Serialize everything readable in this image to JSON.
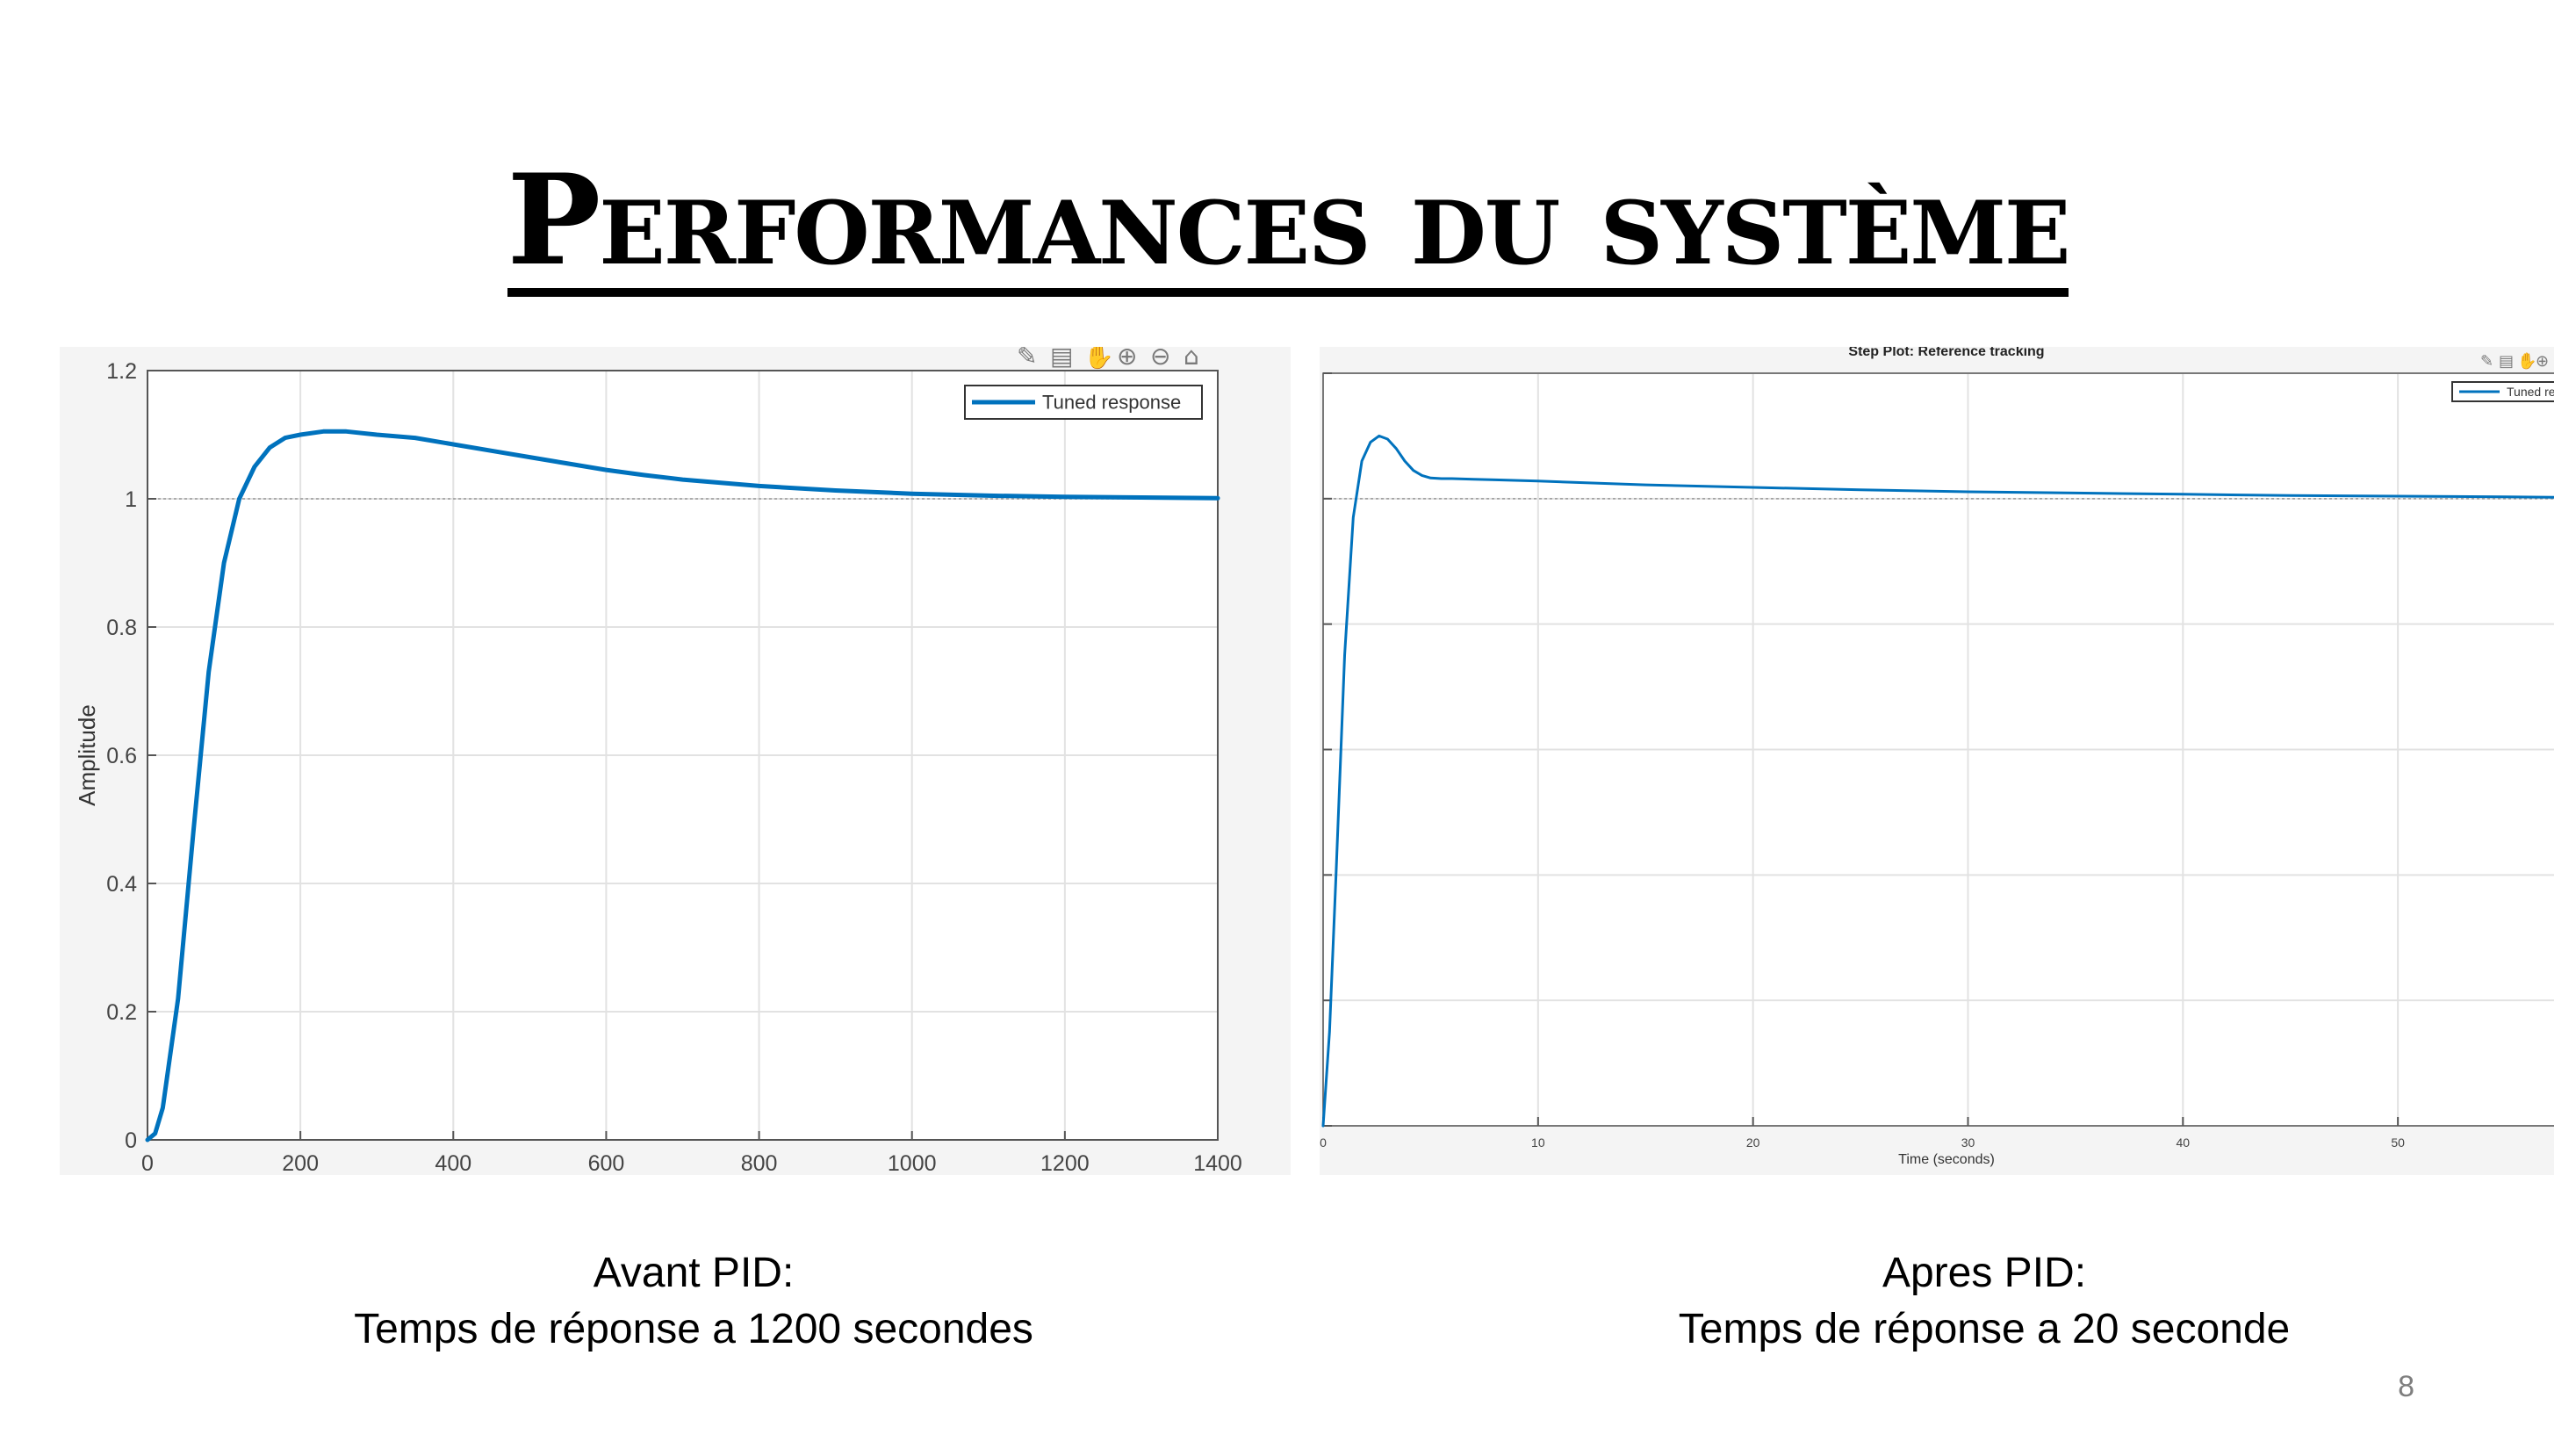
{
  "slide": {
    "title": "Performances du système",
    "slide_number": "8"
  },
  "captions": {
    "left": {
      "line1": "Avant PID:",
      "line2": "Temps de réponse a 1200 secondes"
    },
    "right": {
      "line1": "Apres PID:",
      "line2": "Temps de réponse a 20 seconde"
    }
  },
  "chart_data": [
    {
      "type": "line",
      "title": "",
      "xlabel": "",
      "ylabel": "Amplitude",
      "xlim": [
        0,
        1400
      ],
      "ylim": [
        0,
        1.2
      ],
      "x_ticks": [
        0,
        200,
        400,
        600,
        800,
        1000,
        1200,
        1400
      ],
      "x_tick_labels": [
        "0",
        "200",
        "400",
        "600",
        "800",
        "1000",
        "1200",
        "1400"
      ],
      "y_ticks": [
        0,
        0.2,
        0.4,
        0.6,
        0.8,
        1,
        1.2
      ],
      "y_tick_labels": [
        "0",
        "0.2",
        "0.4",
        "0.6",
        "0.8",
        "1",
        "1.2"
      ],
      "grid": true,
      "reference_line": 1,
      "legend": "top-right",
      "line_color": "#0072bd",
      "series": [
        {
          "name": "Tuned response",
          "x": [
            0,
            10,
            20,
            40,
            60,
            80,
            100,
            120,
            140,
            160,
            180,
            200,
            230,
            260,
            300,
            350,
            400,
            450,
            500,
            550,
            600,
            650,
            700,
            750,
            800,
            900,
            1000,
            1100,
            1200,
            1300,
            1400
          ],
          "y": [
            0,
            0.01,
            0.05,
            0.22,
            0.48,
            0.73,
            0.9,
            1.0,
            1.05,
            1.08,
            1.095,
            1.1,
            1.105,
            1.105,
            1.1,
            1.095,
            1.085,
            1.075,
            1.065,
            1.055,
            1.045,
            1.037,
            1.03,
            1.025,
            1.02,
            1.013,
            1.008,
            1.005,
            1.003,
            1.002,
            1.001
          ]
        }
      ]
    },
    {
      "type": "line",
      "title": "Step Plot: Reference tracking",
      "xlabel": "Time (seconds)",
      "ylabel": "",
      "xlim": [
        0,
        58
      ],
      "ylim": [
        0,
        1.2
      ],
      "x_ticks": [
        0,
        10,
        20,
        30,
        40,
        50
      ],
      "x_tick_labels": [
        "0",
        "10",
        "20",
        "30",
        "40",
        "50"
      ],
      "y_ticks": [
        0,
        0.2,
        0.4,
        0.6,
        0.8,
        1,
        1.2
      ],
      "grid": true,
      "reference_line": 1,
      "legend": "top-right",
      "line_color": "#0072bd",
      "series": [
        {
          "name": "Tuned res",
          "x": [
            0,
            0.3,
            0.6,
            1.0,
            1.4,
            1.8,
            2.2,
            2.6,
            3.0,
            3.4,
            3.8,
            4.2,
            4.6,
            5.0,
            5.5,
            6.0,
            7.0,
            8.0,
            10,
            15,
            20,
            25,
            30,
            35,
            40,
            45,
            50,
            55,
            58
          ],
          "y": [
            0,
            0.15,
            0.4,
            0.75,
            0.97,
            1.06,
            1.09,
            1.1,
            1.095,
            1.08,
            1.06,
            1.045,
            1.037,
            1.033,
            1.032,
            1.032,
            1.031,
            1.03,
            1.028,
            1.022,
            1.018,
            1.014,
            1.011,
            1.009,
            1.007,
            1.005,
            1.004,
            1.003,
            1.002
          ]
        }
      ]
    }
  ]
}
